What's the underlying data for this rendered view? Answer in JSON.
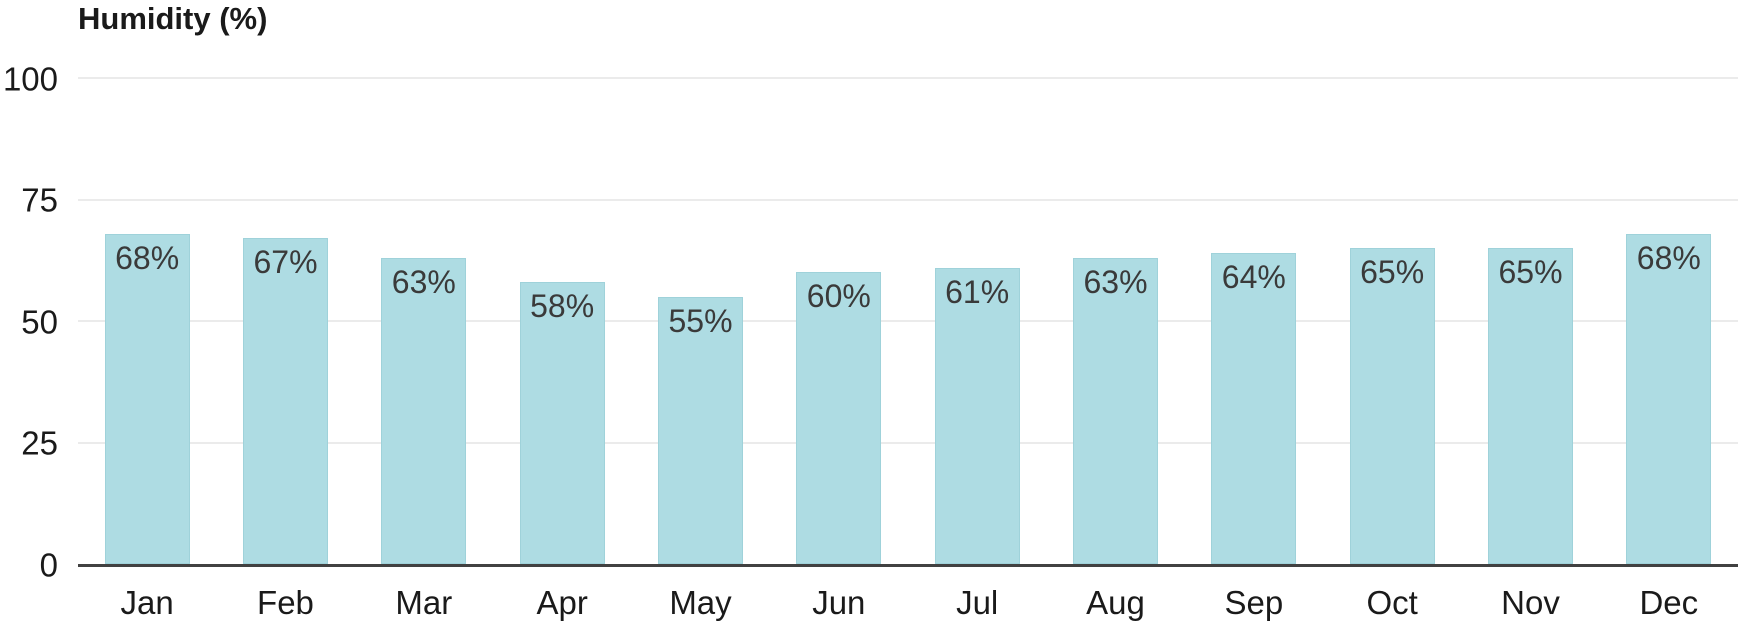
{
  "chart_data": {
    "type": "bar",
    "title": "Humidity (%)",
    "categories": [
      "Jan",
      "Feb",
      "Mar",
      "Apr",
      "May",
      "Jun",
      "Jul",
      "Aug",
      "Sep",
      "Oct",
      "Nov",
      "Dec"
    ],
    "values": [
      68,
      67,
      63,
      58,
      55,
      60,
      61,
      63,
      64,
      65,
      65,
      68
    ],
    "value_labels": [
      "68%",
      "67%",
      "63%",
      "58%",
      "55%",
      "60%",
      "61%",
      "63%",
      "64%",
      "65%",
      "65%",
      "68%"
    ],
    "ylim": [
      0,
      100
    ],
    "yticks": [
      0,
      25,
      50,
      75,
      100
    ],
    "ytick_labels": [
      "0",
      "25",
      "50",
      "75",
      "100"
    ],
    "grid": "horizontal",
    "legend": "none",
    "colors": {
      "bar_fill": "#AEDCE3",
      "bar_border": "#9FD2DA",
      "value_label": "#3A3A3A",
      "axis_line": "#414141",
      "gridline": "#EBEBEB",
      "tick_label": "#1A1A1A",
      "title": "#1A1A1A"
    }
  }
}
